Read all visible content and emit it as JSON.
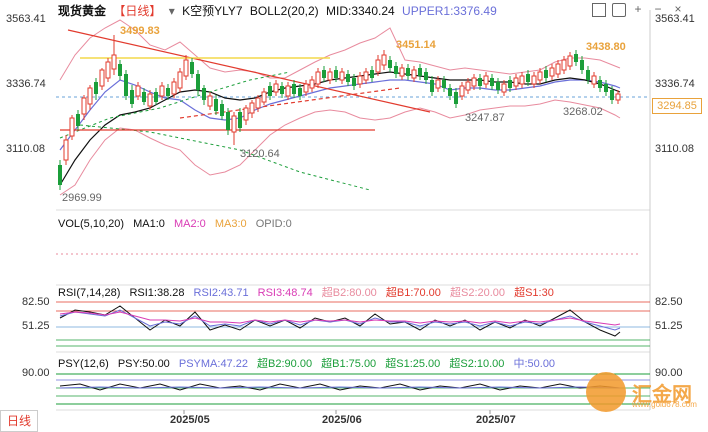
{
  "header": {
    "title": "现货黄金",
    "period": "【日线】",
    "indicator1": "K空预YLY7",
    "boll": "BOLL2(20,2)",
    "mid": "MID:3340.24",
    "upper": "UPPER1:3376.49"
  },
  "price_axis": {
    "left_ticks": [
      "3563.41",
      "3336.74",
      "3110.08"
    ],
    "right_ticks": [
      "3563.41",
      "3336.74",
      "3110.08"
    ],
    "current_price": "3294.85"
  },
  "annotations": [
    "3499.83",
    "3451.14",
    "3438.80",
    "3247.87",
    "3268.02",
    "3120.64",
    "2969.99"
  ],
  "volume": {
    "label": "VOL(5,10,20)",
    "ma1": "MA1:0",
    "ma2": "MA2:0",
    "ma3": "MA3:0",
    "opid": "OPID:0"
  },
  "rsi": {
    "label": "RSI(7,14,28)",
    "rsi1": "RSI1:38.28",
    "rsi2": "RSI2:43.71",
    "rsi3": "RSI3:48.74",
    "b2": "超B2:80.00",
    "b1": "超B1:70.00",
    "s2": "超S2:20.00",
    "s1": "超S1:30",
    "ticks": [
      "82.50",
      "51.25"
    ]
  },
  "psy": {
    "label": "PSY(12,6)",
    "psy": "PSY:50.00",
    "psyma": "PSYMA:47.22",
    "b2": "超B2:90.00",
    "b1": "超B1:75.00",
    "s1": "超S1:25.00",
    "s2": "超S2:10.00",
    "mid": "中:50.00",
    "tick": "90.00"
  },
  "x_axis": [
    "2025/05",
    "2025/06",
    "2025/07"
  ],
  "bottom_tab": "日线",
  "watermark": {
    "name": "汇金网",
    "url": "www.gold678.com"
  },
  "colors": {
    "up": "#e23b2e",
    "down": "#1b9e3a",
    "accent": "#f39a2b",
    "upper": "#e23b2e"
  },
  "icons": [
    "dropdown-icon",
    "close-icon",
    "settings-icon",
    "grid-icon",
    "plus-icon",
    "minus-icon"
  ]
}
